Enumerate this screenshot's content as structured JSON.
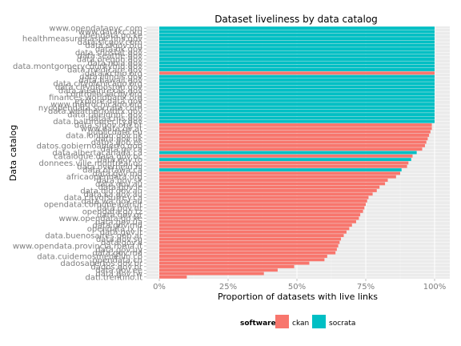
{
  "chart_data": {
    "type": "bar",
    "orientation": "horizontal",
    "title": "Dataset liveliness by data catalog",
    "xlabel": "Proportion of datasets with live links",
    "ylabel": "Data catalog",
    "xlim": [
      0,
      1
    ],
    "x_ticks": [
      0,
      0.25,
      0.5,
      0.75,
      1
    ],
    "x_tick_labels": [
      "0%",
      "25%",
      "50%",
      "75%",
      "100%"
    ],
    "grid": true,
    "legend": {
      "title": "software",
      "position": "bottom",
      "entries": [
        {
          "name": "ckan",
          "color": "#F8766D"
        },
        {
          "name": "socrata",
          "color": "#00BFC4"
        }
      ]
    },
    "colors": {
      "ckan": "#F8766D",
      "socrata": "#00BFC4"
    },
    "catalogs": [
      {
        "name": "www.opendatanyc.com",
        "software": "socrata",
        "value": 1.0
      },
      {
        "name": "www.datakc.org",
        "software": "socrata",
        "value": 1.0
      },
      {
        "name": "opendata.go.ke",
        "software": "socrata",
        "value": 1.0
      },
      {
        "name": "healthmeasures.aspe.hhs.gov",
        "software": "socrata",
        "value": 1.0
      },
      {
        "name": "data.slcgov.com",
        "software": "socrata",
        "value": 1.0
      },
      {
        "name": "data.sfgov.org",
        "software": "socrata",
        "value": 1.0
      },
      {
        "name": "data.ok.gov",
        "software": "socrata",
        "value": 1.0
      },
      {
        "name": "data.snostat.gov",
        "software": "socrata",
        "value": 1.0
      },
      {
        "name": "data.seattle.gov",
        "software": "socrata",
        "value": 1.0
      },
      {
        "name": "data.oregon.gov",
        "software": "socrata",
        "value": 1.0
      },
      {
        "name": "data.nola.gov",
        "software": "socrata",
        "value": 1.0
      },
      {
        "name": "data.montgomerycountymd.gov",
        "software": "socrata",
        "value": 1.0
      },
      {
        "name": "data.medicare.gov",
        "software": "socrata",
        "value": 1.0
      },
      {
        "name": "data.kcmo.org",
        "software": "ckan",
        "value": 1.0
      },
      {
        "name": "data.illinois.gov",
        "software": "socrata",
        "value": 1.0
      },
      {
        "name": "data.hawaii.gov",
        "software": "socrata",
        "value": 1.0
      },
      {
        "name": "data.cityofchicago.org",
        "software": "socrata",
        "value": 1.0
      },
      {
        "name": "data.cityofboston.gov",
        "software": "socrata",
        "value": 1.0
      },
      {
        "name": "data.austintexas.gov",
        "software": "socrata",
        "value": 1.0
      },
      {
        "name": "controller.lacity.org",
        "software": "socrata",
        "value": 1.0
      },
      {
        "name": "finances.worldbank.org",
        "software": "socrata",
        "value": 1.0
      },
      {
        "name": "explore.data.gov",
        "software": "socrata",
        "value": 1.0
      },
      {
        "name": "www.metrochicago.org",
        "software": "socrata",
        "value": 1.0
      },
      {
        "name": "nycopendata.socrata.com",
        "software": "socrata",
        "value": 1.0
      },
      {
        "name": "data.weatherfordtx.gov",
        "software": "socrata",
        "value": 1.0
      },
      {
        "name": "data.raleighnc.gov",
        "software": "socrata",
        "value": 1.0
      },
      {
        "name": "data.cms.gov",
        "software": "socrata",
        "value": 1.0
      },
      {
        "name": "data.baltimorecity.gov",
        "software": "socrata",
        "value": 1.0
      },
      {
        "name": "data.sfgov.org.br",
        "software": "ckan",
        "value": 0.99
      },
      {
        "name": "www.data.gv.at",
        "software": "ckan",
        "value": 0.99
      },
      {
        "name": "publicdata.eu",
        "software": "ckan",
        "value": 0.985
      },
      {
        "name": "data.london.gov.uk",
        "software": "ckan",
        "value": 0.98
      },
      {
        "name": "data.gov.uk",
        "software": "ckan",
        "value": 0.975
      },
      {
        "name": "datos.gob.es",
        "software": "ckan",
        "value": 0.97
      },
      {
        "name": "datos.gobiernoabierto.gob",
        "software": "ckan",
        "value": 0.965
      },
      {
        "name": "data.gc.ca",
        "software": "ckan",
        "value": 0.955
      },
      {
        "name": "data.albertacanada.ca",
        "software": "socrata",
        "value": 0.935
      },
      {
        "name": "catalogue.data.gov.bc",
        "software": "ckan",
        "value": 0.92
      },
      {
        "name": "data.gov.ro",
        "software": "socrata",
        "value": 0.915
      },
      {
        "name": "donnees.ville.montreal.qc",
        "software": "ckan",
        "value": 0.905
      },
      {
        "name": "data.overheid.nl",
        "software": "ckan",
        "value": 0.9
      },
      {
        "name": "data.ottawa.ca",
        "software": "socrata",
        "value": 0.88
      },
      {
        "name": "data.gov.md",
        "software": "ckan",
        "value": 0.875
      },
      {
        "name": "africaopendata.org",
        "software": "ckan",
        "value": 0.86
      },
      {
        "name": "data.gov.sk",
        "software": "ckan",
        "value": 0.83
      },
      {
        "name": "data.gov.au",
        "software": "ckan",
        "value": 0.82
      },
      {
        "name": "data.gov.ie",
        "software": "ckan",
        "value": 0.8
      },
      {
        "name": "data.qld.gov.au",
        "software": "ckan",
        "value": 0.79
      },
      {
        "name": "data.sa.gov.au",
        "software": "ckan",
        "value": 0.775
      },
      {
        "name": "data.cityofsurrey.ca",
        "software": "ckan",
        "value": 0.76
      },
      {
        "name": "data.wa.gov.au",
        "software": "ckan",
        "value": 0.755
      },
      {
        "name": "opendata.comune.bari.it",
        "software": "ckan",
        "value": 0.75
      },
      {
        "name": "data.gov.hr",
        "software": "ckan",
        "value": 0.745
      },
      {
        "name": "opendata.go.tz",
        "software": "ckan",
        "value": 0.74
      },
      {
        "name": "data.gov.gr",
        "software": "ckan",
        "value": 0.73
      },
      {
        "name": "www.opendata.go.ke",
        "software": "ckan",
        "value": 0.725
      },
      {
        "name": "data.gov.ua",
        "software": "ckan",
        "value": 0.715
      },
      {
        "name": "data.gov.md",
        "software": "ckan",
        "value": 0.7
      },
      {
        "name": "opendata.lx.it",
        "software": "ckan",
        "value": 0.69
      },
      {
        "name": "data.gov.it",
        "software": "ckan",
        "value": 0.68
      },
      {
        "name": "data.buenosaires.gob.ar",
        "software": "ckan",
        "value": 0.67
      },
      {
        "name": "data.gov.sg",
        "software": "ckan",
        "value": 0.66
      },
      {
        "name": "data.gov.il",
        "software": "ckan",
        "value": 0.655
      },
      {
        "name": "www.opendata.provincia.roma.it",
        "software": "ckan",
        "value": 0.65
      },
      {
        "name": "data.gov.uy",
        "software": "ckan",
        "value": 0.645
      },
      {
        "name": "data.gov.md",
        "software": "ckan",
        "value": 0.64
      },
      {
        "name": "data.cuidemosmedellin.co",
        "software": "ckan",
        "value": 0.61
      },
      {
        "name": "opendata.ch",
        "software": "ckan",
        "value": 0.6
      },
      {
        "name": "dadosabertos.gov.br",
        "software": "ckan",
        "value": 0.545
      },
      {
        "name": "dados.gov.br",
        "software": "ckan",
        "value": 0.49
      },
      {
        "name": "data.gov.ee",
        "software": "ckan",
        "value": 0.43
      },
      {
        "name": "data.gov.tw",
        "software": "ckan",
        "value": 0.38
      },
      {
        "name": "dati.trentino.it",
        "software": "ckan",
        "value": 0.1
      }
    ]
  }
}
